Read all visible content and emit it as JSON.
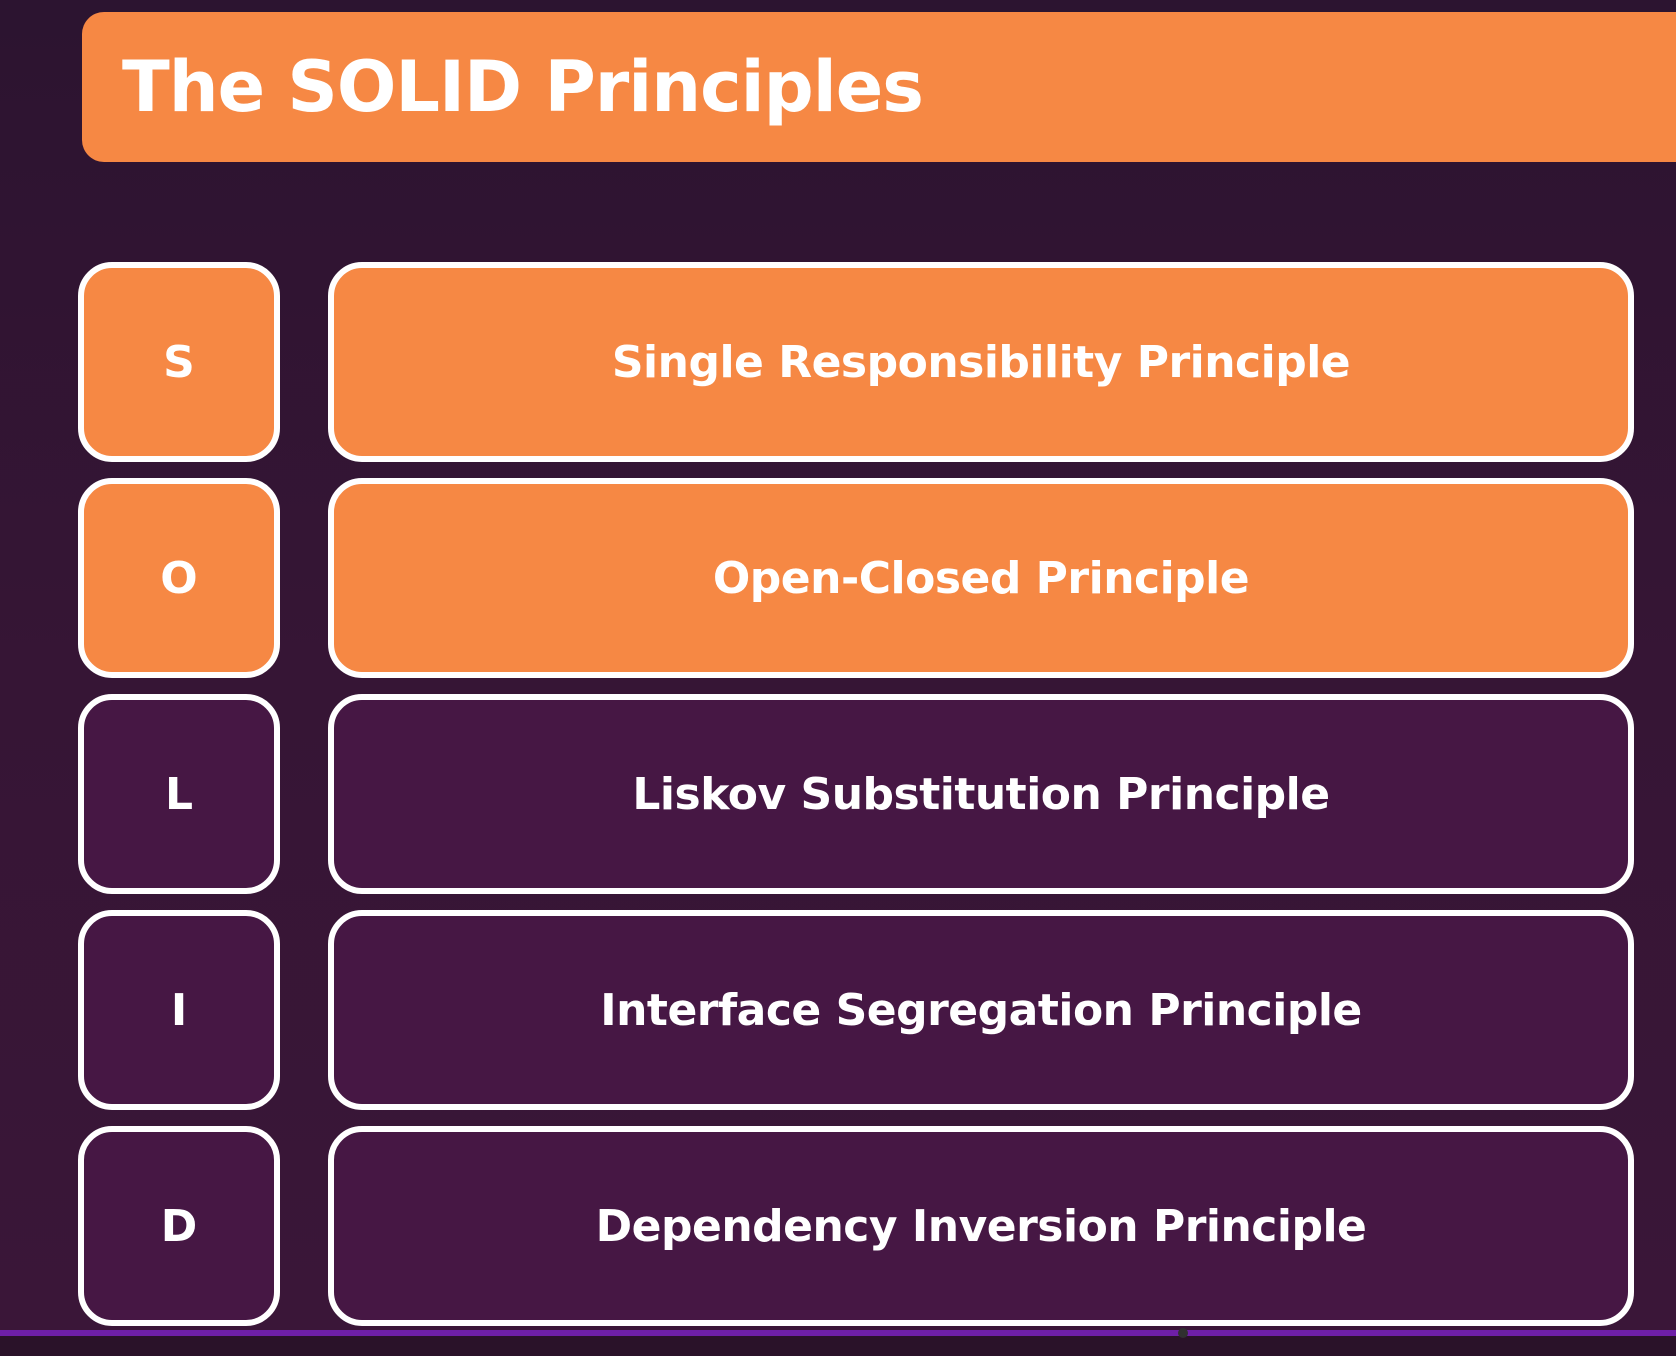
{
  "slide": {
    "title": "The SOLID Principles",
    "rows": [
      {
        "letter": "S",
        "name": "Single Responsibility Principle",
        "highlighted": true
      },
      {
        "letter": "O",
        "name": "Open-Closed Principle",
        "highlighted": true
      },
      {
        "letter": "L",
        "name": "Liskov Substitution Principle",
        "highlighted": false
      },
      {
        "letter": "I",
        "name": "Interface Segregation Principle",
        "highlighted": false
      },
      {
        "letter": "D",
        "name": "Dependency Inversion Principle",
        "highlighted": false
      }
    ]
  },
  "colors": {
    "accent": "#f68844",
    "background": "#331434",
    "row_fill": "#461744",
    "border": "#ffffff",
    "bottom_line": "#6e1fa7"
  }
}
